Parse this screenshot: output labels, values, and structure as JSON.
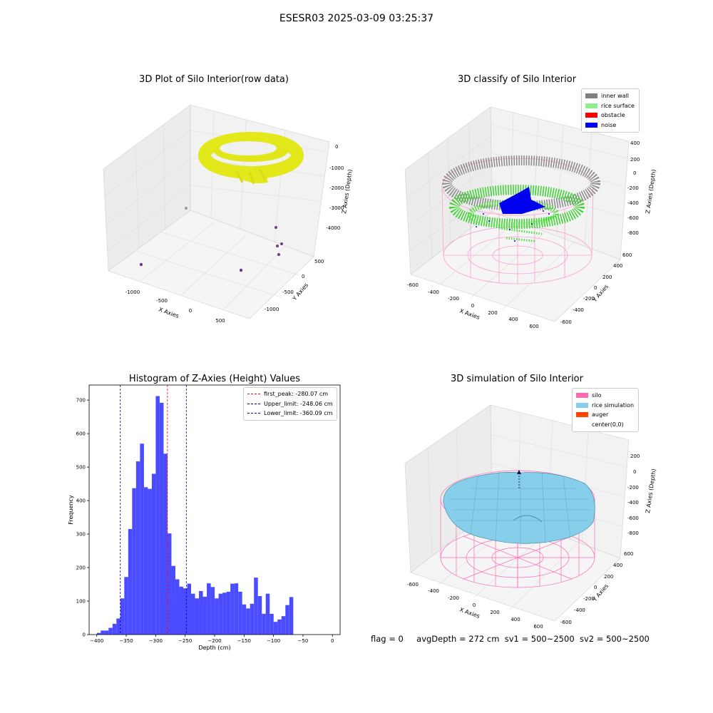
{
  "suptitle": "ESESR03 2025-03-09 03:25:37",
  "status": {
    "flag": "flag = 0",
    "avg": "avgDepth = 272 cm",
    "sv1": "sv1 = 500~2500",
    "sv2": "sv2 = 500~2500"
  },
  "chart_data": [
    {
      "type": "scatter",
      "title": "3D Plot of Silo Interior(row data)",
      "xlabel": "X Axies",
      "ylabel": "Y Axies",
      "zlabel": "Z Axies (Depth)",
      "x_ticks": [
        "-1000",
        "-500",
        "0",
        "500"
      ],
      "y_ticks": [
        "500",
        "0",
        "-500",
        "-1000"
      ],
      "z_ticks": [
        "0",
        "-1000",
        "-2000",
        "-3000",
        "-4000"
      ],
      "colors": {
        "surface": "#e3e81a",
        "outliers": "#6b3f88"
      }
    },
    {
      "type": "scatter",
      "title": "3D classify of Silo Interior",
      "xlabel": "X Axies",
      "ylabel": "Y Axies",
      "zlabel": "Z Axies (Depth)",
      "x_ticks": [
        "-600",
        "-400",
        "-200",
        "0",
        "200",
        "400",
        "600"
      ],
      "y_ticks": [
        "600",
        "400",
        "200",
        "0",
        "-200",
        "-400",
        "-600"
      ],
      "z_ticks": [
        "400",
        "200",
        "0",
        "-200",
        "-400",
        "-600",
        "-800"
      ],
      "legend": [
        {
          "label": "inner wall",
          "color": "#808080"
        },
        {
          "label": "rice surface",
          "color": "#90ee90"
        },
        {
          "label": "obstacle",
          "color": "#ff0000"
        },
        {
          "label": "noise",
          "color": "#0000ff"
        }
      ]
    },
    {
      "type": "bar",
      "title": "Histogram of Z-Axies (Height) Values",
      "xlabel": "Depth (cm)",
      "ylabel": "Frequency",
      "xlim": [
        -413,
        13
      ],
      "ylim": [
        0,
        745
      ],
      "x_ticks": [
        -400,
        -350,
        -300,
        -250,
        -200,
        -150,
        -100,
        -50,
        0
      ],
      "y_ticks": [
        0,
        100,
        200,
        300,
        400,
        500,
        600,
        700
      ],
      "bin_start": -400,
      "bin_width": 6.67,
      "values": [
        5,
        12,
        12,
        20,
        32,
        48,
        108,
        172,
        315,
        437,
        517,
        570,
        440,
        435,
        480,
        712,
        692,
        540,
        302,
        205,
        165,
        143,
        138,
        152,
        122,
        108,
        130,
        113,
        153,
        142,
        108,
        122,
        125,
        128,
        152,
        153,
        128,
        90,
        78,
        92,
        170,
        115,
        62,
        122,
        62,
        38,
        45,
        55,
        88,
        112
      ],
      "bar_color": "#4b4bff",
      "lines": [
        {
          "x": -280.07,
          "color": "#ff0000",
          "label": "first_peak: -280.07 cm"
        },
        {
          "x": -248.06,
          "color": "#0000aa",
          "label": "Upper_limit: -248.06 cm"
        },
        {
          "x": -360.09,
          "color": "#0000aa",
          "label": "Lower_limit: -360.09 cm"
        }
      ]
    },
    {
      "type": "area",
      "title": "3D simulation of Silo Interior",
      "xlabel": "X Axies",
      "ylabel": "Y Axies",
      "zlabel": "Z Axies (Depth)",
      "x_ticks": [
        "-600",
        "-400",
        "-200",
        "0",
        "200",
        "400",
        "600"
      ],
      "y_ticks": [
        "600",
        "400",
        "200",
        "0",
        "-200",
        "-400",
        "-600"
      ],
      "z_ticks": [
        "200",
        "0",
        "-200",
        "-400",
        "-600",
        "-800"
      ],
      "legend": [
        {
          "label": "silo",
          "color": "#ff69b4"
        },
        {
          "label": "rice simulation",
          "color": "#87ceeb"
        },
        {
          "label": "auger",
          "color": "#ff4500"
        },
        {
          "label": "center(0,0)",
          "color": ""
        }
      ]
    }
  ]
}
